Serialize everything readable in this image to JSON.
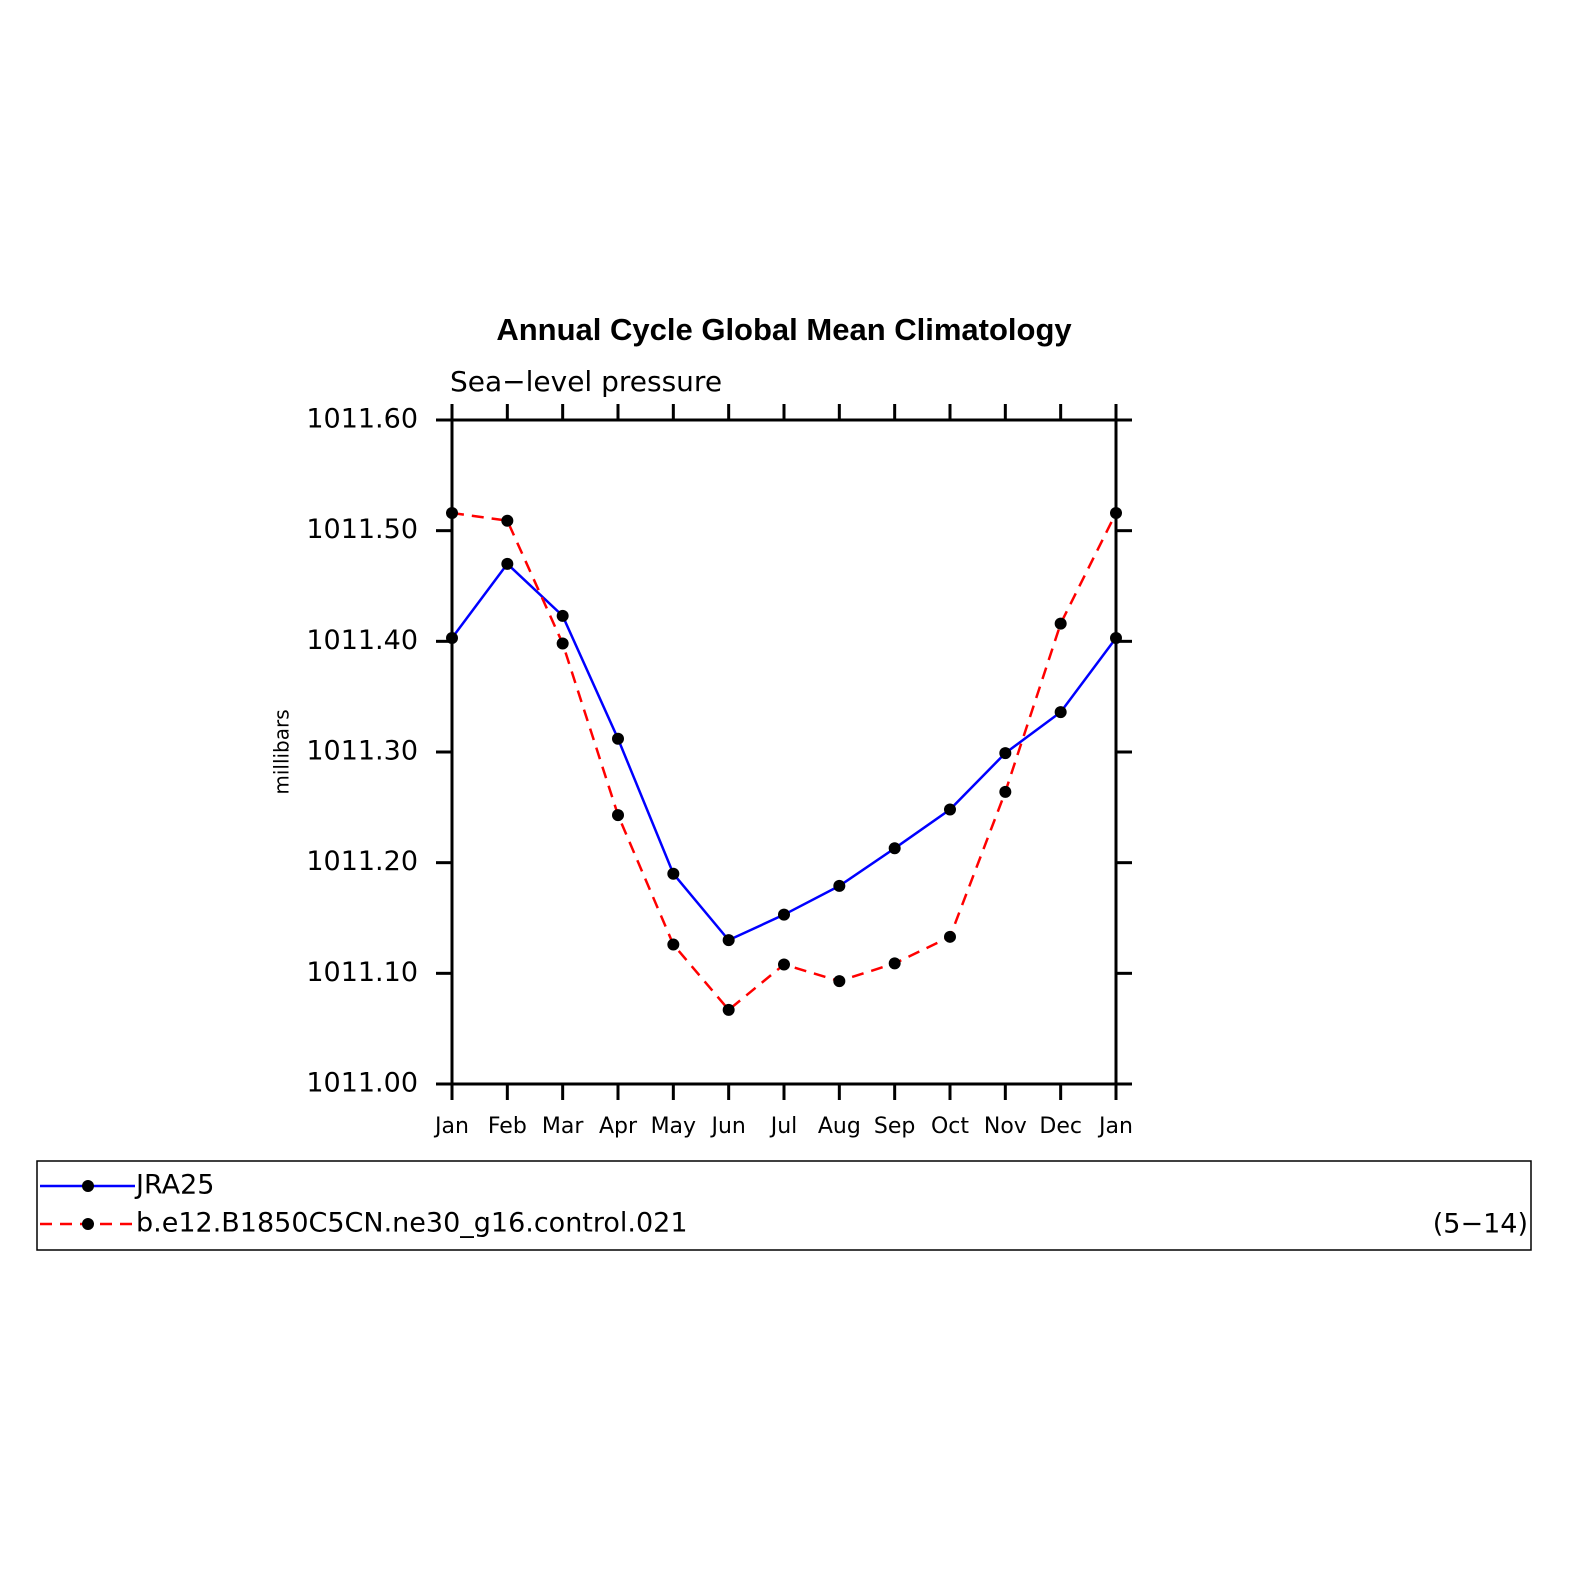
{
  "chart_data": {
    "type": "line",
    "title": "Annual Cycle Global Mean Climatology",
    "subtitle": "Sea−level pressure",
    "y_label": "millibars",
    "annotation": "(5−14)",
    "categories": [
      "Jan",
      "Feb",
      "Mar",
      "Apr",
      "May",
      "Jun",
      "Jul",
      "Aug",
      "Sep",
      "Oct",
      "Nov",
      "Dec",
      "Jan"
    ],
    "series": [
      {
        "name": "JRA25",
        "color": "#0000ff",
        "dashed": false,
        "values": [
          1011.403,
          1011.47,
          1011.423,
          1011.312,
          1011.19,
          1011.13,
          1011.153,
          1011.179,
          1011.213,
          1011.248,
          1011.299,
          1011.336,
          1011.403
        ]
      },
      {
        "name": "b.e12.B1850C5CN.ne30_g16.control.021",
        "color": "#ff0000",
        "dashed": true,
        "values": [
          1011.516,
          1011.509,
          1011.398,
          1011.243,
          1011.126,
          1011.067,
          1011.108,
          1011.093,
          1011.109,
          1011.133,
          1011.264,
          1011.416,
          1011.516
        ]
      }
    ],
    "ylim": [
      1011.0,
      1011.6
    ],
    "yticks": [
      {
        "value": 1011.0,
        "label": "1011.00"
      },
      {
        "value": 1011.1,
        "label": "1011.10"
      },
      {
        "value": 1011.2,
        "label": "1011.20"
      },
      {
        "value": 1011.3,
        "label": "1011.30"
      },
      {
        "value": 1011.4,
        "label": "1011.40"
      },
      {
        "value": 1011.5,
        "label": "1011.50"
      },
      {
        "value": 1011.6,
        "label": "1011.60"
      }
    ],
    "marker_color": "#000000",
    "grid": false,
    "legend": "bottom"
  }
}
